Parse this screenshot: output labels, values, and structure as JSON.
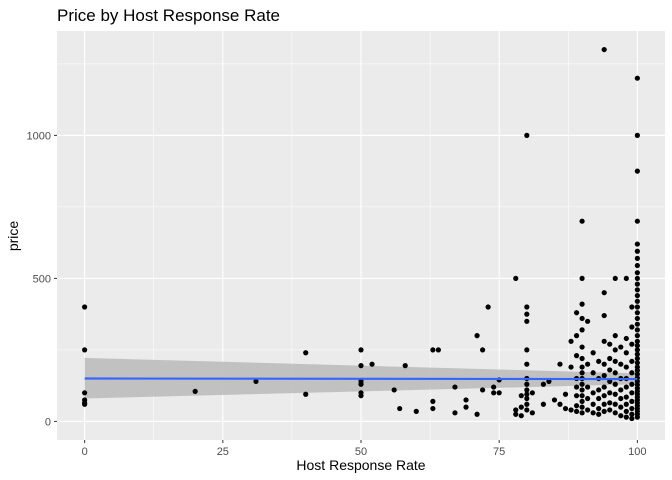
{
  "chart_data": {
    "type": "scatter",
    "title": "Price by Host Response Rate",
    "xlabel": "Host Response Rate",
    "ylabel": "price",
    "xlim": [
      -5,
      105
    ],
    "ylim": [
      -65,
      1365
    ],
    "xticks": [
      0,
      25,
      50,
      75,
      100
    ],
    "yticks": [
      0,
      500,
      1000
    ],
    "grid": true,
    "legend": "none",
    "colors": {
      "panel": "#ebebeb",
      "grid_major": "#ffffff",
      "points": "#000000",
      "trend_line": "#3366ff",
      "confidence_band": "#bdbdbd"
    },
    "trend": {
      "method": "linear",
      "x": [
        0,
        100
      ],
      "y": [
        150,
        148
      ],
      "ci_lower": [
        80,
        130
      ],
      "ci_upper": [
        222,
        168
      ]
    },
    "points": [
      [
        0,
        400
      ],
      [
        0,
        250
      ],
      [
        0,
        100
      ],
      [
        0,
        75
      ],
      [
        0,
        65
      ],
      [
        0,
        60
      ],
      [
        20,
        105
      ],
      [
        31,
        140
      ],
      [
        40,
        240
      ],
      [
        40,
        95
      ],
      [
        50,
        250
      ],
      [
        50,
        195
      ],
      [
        50,
        140
      ],
      [
        50,
        130
      ],
      [
        50,
        100
      ],
      [
        50,
        90
      ],
      [
        52,
        200
      ],
      [
        56,
        110
      ],
      [
        57,
        45
      ],
      [
        58,
        195
      ],
      [
        60,
        35
      ],
      [
        63,
        250
      ],
      [
        64,
        250
      ],
      [
        63,
        70
      ],
      [
        63,
        45
      ],
      [
        67,
        120
      ],
      [
        67,
        30
      ],
      [
        69,
        75
      ],
      [
        69,
        50
      ],
      [
        71,
        300
      ],
      [
        71,
        25
      ],
      [
        72,
        250
      ],
      [
        72,
        110
      ],
      [
        73,
        400
      ],
      [
        74,
        100
      ],
      [
        75,
        145
      ],
      [
        75,
        100
      ],
      [
        74,
        120
      ],
      [
        78,
        500
      ],
      [
        78,
        40
      ],
      [
        78,
        25
      ],
      [
        79,
        90
      ],
      [
        79,
        50
      ],
      [
        79,
        20
      ],
      [
        80,
        1000
      ],
      [
        80,
        400
      ],
      [
        80,
        375
      ],
      [
        80,
        350
      ],
      [
        80,
        250
      ],
      [
        80,
        200
      ],
      [
        80,
        150
      ],
      [
        80,
        130
      ],
      [
        80,
        110
      ],
      [
        80,
        95
      ],
      [
        80,
        80
      ],
      [
        80,
        60
      ],
      [
        80,
        40
      ],
      [
        81,
        100
      ],
      [
        81,
        30
      ],
      [
        83,
        130
      ],
      [
        83,
        60
      ],
      [
        84,
        140
      ],
      [
        85,
        75
      ],
      [
        86,
        60
      ],
      [
        86,
        200
      ],
      [
        87,
        95
      ],
      [
        87,
        45
      ],
      [
        88,
        280
      ],
      [
        88,
        190
      ],
      [
        88,
        40
      ],
      [
        89,
        380
      ],
      [
        89,
        300
      ],
      [
        89,
        230
      ],
      [
        89,
        150
      ],
      [
        89,
        120
      ],
      [
        89,
        90
      ],
      [
        89,
        55
      ],
      [
        89,
        35
      ],
      [
        90,
        700
      ],
      [
        90,
        500
      ],
      [
        90,
        410
      ],
      [
        90,
        360
      ],
      [
        90,
        320
      ],
      [
        90,
        260
      ],
      [
        90,
        220
      ],
      [
        90,
        190
      ],
      [
        90,
        170
      ],
      [
        90,
        150
      ],
      [
        90,
        130
      ],
      [
        90,
        110
      ],
      [
        90,
        90
      ],
      [
        90,
        70
      ],
      [
        90,
        50
      ],
      [
        90,
        30
      ],
      [
        91,
        350
      ],
      [
        91,
        200
      ],
      [
        91,
        120
      ],
      [
        91,
        80
      ],
      [
        91,
        40
      ],
      [
        92,
        240
      ],
      [
        92,
        170
      ],
      [
        92,
        100
      ],
      [
        92,
        60
      ],
      [
        92,
        30
      ],
      [
        93,
        210
      ],
      [
        93,
        150
      ],
      [
        93,
        110
      ],
      [
        93,
        80
      ],
      [
        93,
        45
      ],
      [
        93,
        25
      ],
      [
        94,
        1300
      ],
      [
        94,
        450
      ],
      [
        94,
        370
      ],
      [
        94,
        280
      ],
      [
        94,
        200
      ],
      [
        94,
        160
      ],
      [
        94,
        120
      ],
      [
        94,
        90
      ],
      [
        94,
        60
      ],
      [
        94,
        35
      ],
      [
        95,
        270
      ],
      [
        95,
        220
      ],
      [
        95,
        180
      ],
      [
        95,
        140
      ],
      [
        95,
        100
      ],
      [
        95,
        65
      ],
      [
        95,
        40
      ],
      [
        96,
        500
      ],
      [
        96,
        300
      ],
      [
        96,
        250
      ],
      [
        96,
        210
      ],
      [
        96,
        170
      ],
      [
        96,
        130
      ],
      [
        96,
        95
      ],
      [
        96,
        60
      ],
      [
        96,
        30
      ],
      [
        97,
        260
      ],
      [
        97,
        200
      ],
      [
        97,
        150
      ],
      [
        97,
        110
      ],
      [
        97,
        80
      ],
      [
        97,
        50
      ],
      [
        97,
        20
      ],
      [
        98,
        500
      ],
      [
        98,
        290
      ],
      [
        98,
        240
      ],
      [
        98,
        190
      ],
      [
        98,
        150
      ],
      [
        98,
        120
      ],
      [
        98,
        85
      ],
      [
        98,
        60
      ],
      [
        98,
        35
      ],
      [
        98,
        15
      ],
      [
        99,
        400
      ],
      [
        99,
        330
      ],
      [
        99,
        270
      ],
      [
        99,
        210
      ],
      [
        99,
        170
      ],
      [
        99,
        130
      ],
      [
        99,
        100
      ],
      [
        99,
        70
      ],
      [
        99,
        45
      ],
      [
        99,
        25
      ],
      [
        99,
        10
      ],
      [
        100,
        1200
      ],
      [
        100,
        1000
      ],
      [
        100,
        875
      ],
      [
        100,
        700
      ],
      [
        100,
        620
      ],
      [
        100,
        595
      ],
      [
        100,
        570
      ],
      [
        100,
        545
      ],
      [
        100,
        520
      ],
      [
        100,
        500
      ],
      [
        100,
        480
      ],
      [
        100,
        460
      ],
      [
        100,
        440
      ],
      [
        100,
        420
      ],
      [
        100,
        400
      ],
      [
        100,
        380
      ],
      [
        100,
        360
      ],
      [
        100,
        340
      ],
      [
        100,
        320
      ],
      [
        100,
        300
      ],
      [
        100,
        280
      ],
      [
        100,
        265
      ],
      [
        100,
        250
      ],
      [
        100,
        235
      ],
      [
        100,
        220
      ],
      [
        100,
        205
      ],
      [
        100,
        190
      ],
      [
        100,
        178
      ],
      [
        100,
        165
      ],
      [
        100,
        152
      ],
      [
        100,
        140
      ],
      [
        100,
        128
      ],
      [
        100,
        116
      ],
      [
        100,
        105
      ],
      [
        100,
        95
      ],
      [
        100,
        85
      ],
      [
        100,
        75
      ],
      [
        100,
        65
      ],
      [
        100,
        55
      ],
      [
        100,
        45
      ],
      [
        100,
        35
      ],
      [
        100,
        25
      ],
      [
        100,
        15
      ]
    ]
  }
}
